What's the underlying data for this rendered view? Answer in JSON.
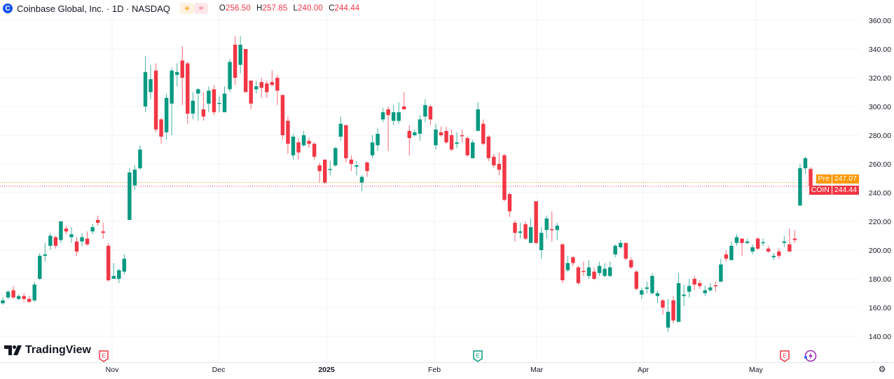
{
  "header": {
    "logo_letter": "C",
    "title": "Coinbase Global, Inc. · 1D · NASDAQ",
    "session_icon": "sun-icon",
    "session_glyph": "☀",
    "status_icon": "approx-icon",
    "status_glyph": "≈",
    "ohlc": {
      "o_label": "O",
      "o": "256.50",
      "h_label": "H",
      "h": "257.85",
      "l_label": "L",
      "l": "240.00",
      "c_label": "C",
      "c": "244.44"
    }
  },
  "price_badges": {
    "pre": {
      "label": "Pre",
      "value": "247.07",
      "color": "#ff9800"
    },
    "last": {
      "label": "COIN",
      "value": "244.44",
      "color": "#f23645"
    }
  },
  "branding": {
    "name": "TradingView"
  },
  "colors": {
    "up": "#089981",
    "down": "#f23645",
    "grid": "#f0f3fa",
    "text": "#131722"
  },
  "chart_data": {
    "type": "candlestick",
    "symbol": "COIN",
    "interval": "1D",
    "ylim": [
      135,
      365
    ],
    "yticks": [
      "360.00",
      "340.00",
      "320.00",
      "300.00",
      "280.00",
      "260.00",
      "240.00",
      "220.00",
      "200.00",
      "180.00",
      "160.00",
      "140.00"
    ],
    "xticks": [
      "Nov",
      "Dec",
      "2025",
      "Feb",
      "Mar",
      "Apr",
      "May"
    ],
    "price_lines": [
      {
        "label": "Pre",
        "value": 247.07,
        "color": "#ff9800"
      },
      {
        "label": "COIN",
        "value": 244.44,
        "color": "#f23645"
      }
    ],
    "events": [
      {
        "type": "earnings",
        "color": "#f23645",
        "near": "Nov"
      },
      {
        "type": "earnings",
        "color": "#089981",
        "near": "Feb"
      },
      {
        "type": "earnings",
        "color": "#f23645",
        "near": "May"
      },
      {
        "type": "split-dividend-flash",
        "color": "#9c27b0",
        "near": "May"
      }
    ],
    "grid": true,
    "candles_ohlc": [
      [
        163,
        167,
        162,
        165
      ],
      [
        167,
        172,
        166,
        171
      ],
      [
        172,
        175,
        166,
        167
      ],
      [
        166,
        169,
        165,
        168
      ],
      [
        168,
        170,
        164,
        166
      ],
      [
        166,
        168,
        163,
        164
      ],
      [
        165,
        178,
        164,
        176
      ],
      [
        180,
        198,
        179,
        196
      ],
      [
        196,
        205,
        192,
        197
      ],
      [
        203,
        212,
        200,
        210
      ],
      [
        209,
        210,
        201,
        203
      ],
      [
        207,
        220,
        205,
        220
      ],
      [
        215,
        217,
        211,
        213
      ],
      [
        209,
        216,
        205,
        211
      ],
      [
        206,
        209,
        196,
        199
      ],
      [
        206,
        212,
        203,
        209
      ],
      [
        208,
        213,
        203,
        204
      ],
      [
        213,
        218,
        211,
        216
      ],
      [
        221,
        224,
        217,
        219
      ],
      [
        213,
        219,
        208,
        212
      ],
      [
        203,
        205,
        178,
        179
      ],
      [
        180,
        191,
        180,
        182
      ],
      [
        180,
        187,
        177,
        186
      ],
      [
        185,
        197,
        183,
        194
      ],
      [
        221,
        257,
        221,
        254
      ],
      [
        245,
        259,
        242,
        256
      ],
      [
        257,
        273,
        256,
        270
      ],
      [
        300,
        335,
        296,
        324
      ],
      [
        310,
        329,
        305,
        319
      ],
      [
        325,
        330,
        282,
        284
      ],
      [
        291,
        292,
        274,
        279
      ],
      [
        282,
        309,
        277,
        306
      ],
      [
        302,
        327,
        280,
        325
      ],
      [
        322,
        330,
        314,
        324
      ],
      [
        332,
        342,
        301,
        320
      ],
      [
        330,
        331,
        288,
        295
      ],
      [
        295,
        310,
        291,
        304
      ],
      [
        309,
        313,
        290,
        312
      ],
      [
        298,
        310,
        290,
        293
      ],
      [
        302,
        314,
        296,
        311
      ],
      [
        312,
        315,
        294,
        296
      ],
      [
        302,
        307,
        296,
        302.5
      ],
      [
        296,
        314,
        296,
        309
      ],
      [
        312,
        333,
        310,
        331
      ],
      [
        343,
        349,
        315,
        320
      ],
      [
        329,
        349,
        323,
        343
      ],
      [
        340,
        340,
        310,
        310
      ],
      [
        318,
        318,
        298,
        302
      ],
      [
        312,
        318,
        309,
        314
      ],
      [
        317,
        320,
        306,
        313
      ],
      [
        316,
        318,
        306,
        310
      ],
      [
        317,
        325,
        314,
        315
      ],
      [
        320,
        322,
        301,
        311
      ],
      [
        308,
        308,
        277,
        280
      ],
      [
        290,
        293,
        267,
        274
      ],
      [
        266,
        281,
        263,
        279
      ],
      [
        275,
        278,
        263,
        268
      ],
      [
        273,
        283,
        272,
        280
      ],
      [
        276,
        278,
        271,
        274
      ],
      [
        274,
        275,
        263,
        265
      ],
      [
        259,
        261,
        247,
        255
      ],
      [
        263,
        263,
        246,
        247
      ],
      [
        256,
        262,
        252,
        256.5
      ],
      [
        259,
        272,
        258,
        271
      ],
      [
        279,
        293,
        276,
        288
      ],
      [
        287,
        287,
        261,
        264
      ],
      [
        263,
        266,
        255,
        260
      ],
      [
        258,
        262,
        252,
        259
      ],
      [
        247,
        252,
        241,
        251
      ],
      [
        261,
        262,
        251,
        255
      ],
      [
        266,
        280,
        264,
        275
      ],
      [
        273,
        285,
        269,
        281
      ],
      [
        291,
        299,
        289,
        296
      ],
      [
        298,
        300,
        269,
        294
      ],
      [
        290,
        301,
        287,
        296
      ],
      [
        290,
        303,
        288,
        296
      ],
      [
        300,
        310,
        298,
        298
      ],
      [
        283,
        287,
        266,
        278
      ],
      [
        280,
        284,
        279,
        282
      ],
      [
        281,
        294,
        276,
        291
      ],
      [
        293,
        305,
        289,
        301
      ],
      [
        300,
        301,
        287,
        291
      ],
      [
        273,
        288,
        270,
        284
      ],
      [
        282,
        286,
        279,
        280
      ],
      [
        283,
        286,
        274,
        275
      ],
      [
        280,
        284,
        269,
        270
      ],
      [
        274,
        282,
        271,
        275
      ],
      [
        280,
        284,
        275,
        279.5
      ],
      [
        278,
        279,
        265,
        266
      ],
      [
        264,
        277,
        264,
        275
      ],
      [
        283,
        303,
        283,
        298
      ],
      [
        288,
        291,
        273,
        274
      ],
      [
        279,
        280,
        262,
        264
      ],
      [
        265,
        267,
        257,
        259
      ],
      [
        260,
        268,
        252,
        256
      ],
      [
        266,
        267,
        234,
        235
      ],
      [
        239,
        240,
        223,
        227
      ],
      [
        219,
        221,
        206,
        212
      ],
      [
        212,
        219,
        208,
        213
      ],
      [
        218,
        220,
        207,
        208
      ],
      [
        205,
        222,
        205,
        216
      ],
      [
        234,
        234,
        204,
        205
      ],
      [
        200,
        216,
        194,
        212
      ],
      [
        214,
        224,
        208,
        222
      ],
      [
        214.5,
        227,
        206,
        214
      ],
      [
        214,
        219,
        207,
        217
      ],
      [
        204,
        205,
        177,
        179
      ],
      [
        186,
        196,
        185,
        191
      ],
      [
        195,
        196,
        189,
        191
      ],
      [
        188,
        189,
        176,
        177
      ],
      [
        185.5,
        192,
        182,
        185
      ],
      [
        182,
        193,
        180,
        188
      ],
      [
        185,
        188,
        179,
        180
      ],
      [
        184,
        192,
        182,
        189
      ],
      [
        182,
        191,
        181,
        187
      ],
      [
        182,
        192,
        181,
        188
      ],
      [
        197,
        204,
        195,
        203
      ],
      [
        202,
        207,
        201,
        205
      ],
      [
        205,
        205,
        193,
        194
      ],
      [
        193,
        195,
        187,
        188
      ],
      [
        185,
        186,
        172,
        173
      ],
      [
        169,
        174,
        166,
        172
      ],
      [
        173,
        178,
        170,
        174
      ],
      [
        170,
        184,
        169,
        182
      ],
      [
        168,
        172,
        163,
        170
      ],
      [
        165,
        166,
        155,
        160
      ],
      [
        146,
        166,
        143,
        157
      ],
      [
        165,
        168,
        149,
        151
      ],
      [
        150,
        184,
        150,
        177
      ],
      [
        168,
        176,
        161,
        169
      ],
      [
        171,
        180,
        167,
        175
      ],
      [
        180,
        182,
        172,
        176
      ],
      [
        177,
        179,
        173,
        175
      ],
      [
        170,
        175,
        168,
        172
      ],
      [
        172,
        177,
        171,
        174
      ],
      [
        175.5,
        178,
        171,
        175
      ],
      [
        178,
        194,
        178,
        190
      ],
      [
        197,
        200,
        192,
        194
      ],
      [
        193,
        206,
        193,
        203
      ],
      [
        205,
        211,
        203,
        209
      ],
      [
        208,
        208,
        196,
        205
      ],
      [
        205,
        208,
        204,
        206
      ],
      [
        199,
        204,
        197,
        202
      ],
      [
        208,
        209,
        200,
        201
      ],
      [
        205,
        208,
        203,
        205.5
      ],
      [
        201,
        203,
        198,
        199
      ],
      [
        195,
        198,
        193,
        196
      ],
      [
        199,
        201,
        194,
        196
      ],
      [
        205,
        210,
        202,
        206
      ],
      [
        204,
        215,
        199,
        199
      ],
      [
        208,
        214,
        205,
        207
      ],
      [
        231,
        260,
        231,
        257
      ],
      [
        257,
        265,
        253,
        264
      ],
      [
        256.5,
        257.85,
        240,
        244.44
      ]
    ]
  }
}
